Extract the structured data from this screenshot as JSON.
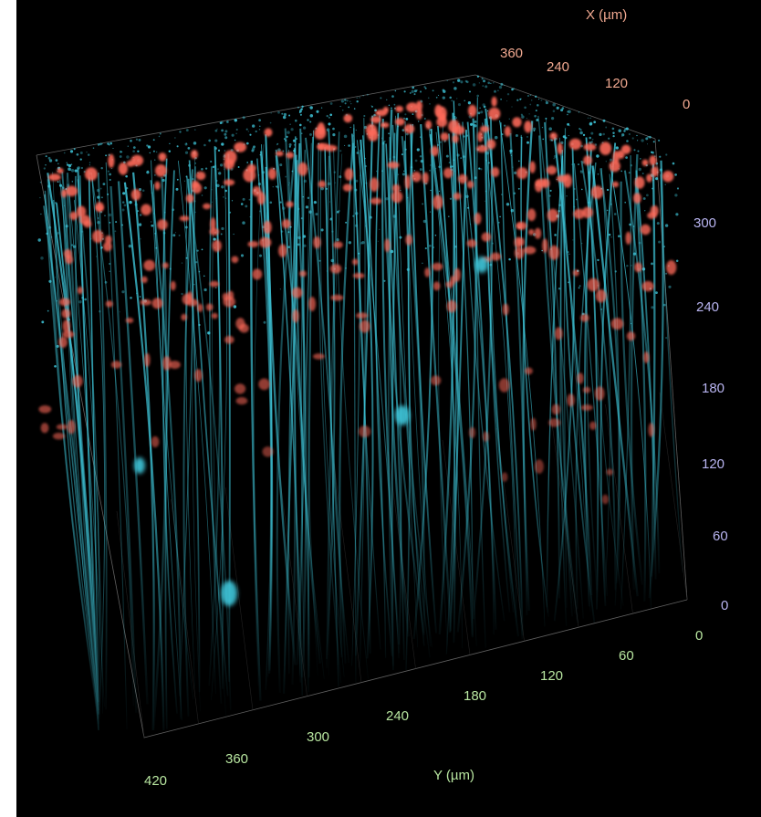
{
  "axes": {
    "x": {
      "title": "X (µm)",
      "ticks": [
        "360",
        "240",
        "120",
        "0"
      ],
      "color": "#f0a890"
    },
    "y": {
      "title": "Y (µm)",
      "ticks": [
        "420",
        "360",
        "300",
        "240",
        "180",
        "120",
        "60",
        "0"
      ],
      "color": "#b8e6a0"
    },
    "z": {
      "ticks": [
        "300",
        "240",
        "180",
        "120",
        "60",
        "0"
      ],
      "color": "#b8b4f0"
    }
  },
  "colors": {
    "background": "#000000",
    "dendrite": "#3fc8dc",
    "soma": "#ff6a5a",
    "box_edge": "#9a9a9a"
  }
}
